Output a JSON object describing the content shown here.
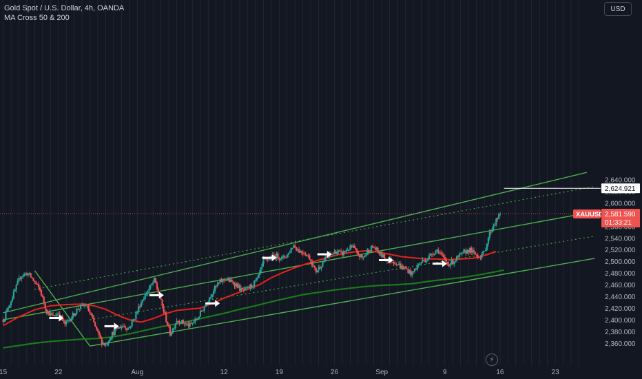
{
  "legend": {
    "title": "Gold Spot / U.S. Dollar, 4h, OANDA",
    "indicator": "MA Cross 50 & 200"
  },
  "currency_button": "USD",
  "price_label": {
    "symbol": "XAUUSD",
    "price": "2,581.590",
    "countdown": "01:33:21"
  },
  "target_label": "2,624.921",
  "colors": {
    "background": "#131722",
    "up": "#26a69a",
    "down": "#ef5350",
    "channel": "#4caf50",
    "ma_fast": "#e5231b",
    "ma_slow": "#1b7a1b",
    "grid": "#2a2e39",
    "price_line": "#ef5350"
  },
  "icons": {
    "lightning": "lightning-icon"
  },
  "chart_data": {
    "type": "candlestick",
    "y_axis": {
      "min": 2350,
      "max": 2650,
      "ticks": [
        2360,
        2380,
        2400,
        2420,
        2440,
        2460,
        2480,
        2500,
        2520,
        2540,
        2560,
        2580,
        2600,
        2620,
        2640
      ],
      "tick_labels": [
        "2,360.000",
        "2,380.000",
        "2,400.000",
        "2,420.000",
        "2,440.000",
        "2,460.000",
        "2,480.000",
        "2,500.000",
        "2,520.000",
        "2,540.000",
        "2,560.000",
        "2,580.000",
        "2,600.000",
        "2,620.000",
        "2,640.000"
      ]
    },
    "x_axis": {
      "range_day": [
        15.0,
        38.9
      ],
      "labels": [
        {
          "day": 15,
          "text": "15"
        },
        {
          "day": 22,
          "text": "22"
        },
        {
          "day": 32,
          "text": "Aug"
        },
        {
          "day": 43,
          "text": "12"
        },
        {
          "day": 50,
          "text": "19"
        },
        {
          "day": 57,
          "text": "26"
        },
        {
          "day": 63,
          "text": "Sep"
        },
        {
          "day": 71,
          "text": "9"
        },
        {
          "day": 78,
          "text": "16"
        },
        {
          "day": 85,
          "text": "23"
        }
      ]
    },
    "close_path": [
      [
        15.0,
        2400
      ],
      [
        16.5,
        2450
      ],
      [
        17.2,
        2475
      ],
      [
        18.1,
        2480
      ],
      [
        18.8,
        2468
      ],
      [
        19.7,
        2450
      ],
      [
        20.5,
        2415
      ],
      [
        21.3,
        2405
      ],
      [
        22.0,
        2412
      ],
      [
        22.8,
        2392
      ],
      [
        23.7,
        2405
      ],
      [
        24.5,
        2420
      ],
      [
        25.5,
        2425
      ],
      [
        26.2,
        2405
      ],
      [
        26.9,
        2380
      ],
      [
        27.5,
        2362
      ],
      [
        28.0,
        2357
      ],
      [
        28.6,
        2372
      ],
      [
        29.4,
        2385
      ],
      [
        30.2,
        2390
      ],
      [
        30.9,
        2385
      ],
      [
        31.7,
        2405
      ],
      [
        32.3,
        2425
      ],
      [
        32.9,
        2440
      ],
      [
        33.6,
        2455
      ],
      [
        34.2,
        2468
      ],
      [
        34.8,
        2440
      ],
      [
        35.5,
        2408
      ],
      [
        36.2,
        2375
      ],
      [
        37.0,
        2400
      ],
      [
        37.8,
        2395
      ],
      [
        38.6,
        2390
      ],
      [
        39.5,
        2400
      ],
      [
        40.4,
        2420
      ],
      [
        41.2,
        2440
      ],
      [
        41.9,
        2455
      ],
      [
        42.5,
        2465
      ],
      [
        43.2,
        2470
      ],
      [
        43.9,
        2465
      ],
      [
        44.6,
        2460
      ],
      [
        45.2,
        2450
      ],
      [
        45.9,
        2452
      ],
      [
        46.6,
        2460
      ],
      [
        47.3,
        2470
      ],
      [
        48.0,
        2500
      ],
      [
        48.8,
        2505
      ],
      [
        49.6,
        2510
      ],
      [
        50.4,
        2505
      ],
      [
        51.1,
        2512
      ],
      [
        51.8,
        2528
      ],
      [
        52.5,
        2518
      ],
      [
        53.2,
        2515
      ],
      [
        53.9,
        2505
      ],
      [
        54.6,
        2482
      ],
      [
        55.2,
        2492
      ],
      [
        55.9,
        2505
      ],
      [
        56.6,
        2512
      ],
      [
        57.3,
        2518
      ],
      [
        57.9,
        2512
      ],
      [
        58.6,
        2520
      ],
      [
        59.3,
        2525
      ],
      [
        59.9,
        2512
      ],
      [
        60.6,
        2505
      ],
      [
        61.2,
        2518
      ],
      [
        61.9,
        2525
      ],
      [
        62.6,
        2515
      ],
      [
        63.4,
        2505
      ],
      [
        64.1,
        2502
      ],
      [
        64.8,
        2498
      ],
      [
        65.5,
        2490
      ],
      [
        66.2,
        2486
      ],
      [
        66.8,
        2478
      ],
      [
        67.4,
        2490
      ],
      [
        68.1,
        2500
      ],
      [
        68.8,
        2505
      ],
      [
        69.5,
        2515
      ],
      [
        70.1,
        2520
      ],
      [
        70.8,
        2505
      ],
      [
        71.4,
        2495
      ],
      [
        72.1,
        2500
      ],
      [
        72.8,
        2508
      ],
      [
        73.5,
        2515
      ],
      [
        74.1,
        2520
      ],
      [
        74.8,
        2512
      ],
      [
        75.4,
        2508
      ],
      [
        76.0,
        2515
      ],
      [
        76.6,
        2545
      ],
      [
        77.1,
        2560
      ],
      [
        77.6,
        2572
      ],
      [
        78.1,
        2581.59
      ]
    ],
    "ma_fast": [
      [
        15.0,
        2390
      ],
      [
        17.0,
        2405
      ],
      [
        19.0,
        2417
      ],
      [
        21.0,
        2424
      ],
      [
        23.0,
        2426
      ],
      [
        25.0,
        2427
      ],
      [
        26.5,
        2424
      ],
      [
        28.0,
        2418
      ],
      [
        29.5,
        2408
      ],
      [
        31.0,
        2400
      ],
      [
        32.5,
        2396
      ],
      [
        34.0,
        2402
      ],
      [
        35.5,
        2410
      ],
      [
        37.0,
        2416
      ],
      [
        38.5,
        2418
      ],
      [
        40.0,
        2420
      ],
      [
        41.5,
        2428
      ],
      [
        43.0,
        2437
      ],
      [
        44.5,
        2445
      ],
      [
        46.0,
        2452
      ],
      [
        47.5,
        2460
      ],
      [
        49.0,
        2472
      ],
      [
        50.5,
        2481
      ],
      [
        52.0,
        2489
      ],
      [
        53.5,
        2496
      ],
      [
        55.0,
        2502
      ],
      [
        56.5,
        2508
      ],
      [
        58.0,
        2513
      ],
      [
        59.5,
        2516
      ],
      [
        61.0,
        2518
      ],
      [
        62.5,
        2516
      ],
      [
        64.0,
        2512
      ],
      [
        65.5,
        2508
      ],
      [
        67.0,
        2506
      ],
      [
        68.5,
        2504
      ],
      [
        70.0,
        2504
      ],
      [
        71.5,
        2503
      ],
      [
        73.0,
        2504
      ],
      [
        74.5,
        2505
      ],
      [
        75.5,
        2508
      ],
      [
        76.5,
        2512
      ],
      [
        77.5,
        2517
      ]
    ],
    "ma_slow": [
      [
        15.0,
        2352
      ],
      [
        17.0,
        2356
      ],
      [
        19.0,
        2360
      ],
      [
        21.0,
        2363
      ],
      [
        23.0,
        2365
      ],
      [
        25.0,
        2367
      ],
      [
        27.0,
        2368
      ],
      [
        29.0,
        2371
      ],
      [
        31.0,
        2376
      ],
      [
        33.0,
        2382
      ],
      [
        35.0,
        2388
      ],
      [
        37.0,
        2393
      ],
      [
        39.0,
        2399
      ],
      [
        41.0,
        2405
      ],
      [
        43.0,
        2411
      ],
      [
        45.0,
        2418
      ],
      [
        47.0,
        2424
      ],
      [
        49.0,
        2431
      ],
      [
        51.0,
        2437
      ],
      [
        53.0,
        2443
      ],
      [
        55.0,
        2447
      ],
      [
        57.0,
        2451
      ],
      [
        59.0,
        2454
      ],
      [
        61.0,
        2457
      ],
      [
        63.0,
        2459
      ],
      [
        65.0,
        2460
      ],
      [
        67.0,
        2462
      ],
      [
        69.0,
        2466
      ],
      [
        71.0,
        2469
      ],
      [
        73.0,
        2472
      ],
      [
        75.0,
        2476
      ],
      [
        77.0,
        2481
      ],
      [
        78.5,
        2485
      ]
    ],
    "channel_lines": [
      {
        "name": "upper",
        "style": "solid",
        "from": [
          15.0,
          2412
        ],
        "to": [
          89.0,
          2652
        ]
      },
      {
        "name": "upper-mid",
        "style": "dotted",
        "from": [
          19.0,
          2452
        ],
        "to": [
          90.0,
          2628
        ]
      },
      {
        "name": "middle",
        "style": "solid",
        "from": [
          15.0,
          2400
        ],
        "to": [
          90.0,
          2585
        ]
      },
      {
        "name": "lower-mid",
        "style": "dotted",
        "from": [
          26.0,
          2400
        ],
        "to": [
          90.0,
          2543
        ]
      },
      {
        "name": "lower",
        "style": "solid",
        "from": [
          26.0,
          2355
        ],
        "to": [
          90.0,
          2505
        ]
      }
    ],
    "diagonal_line": {
      "from": [
        19.0,
        2484
      ],
      "to": [
        26.0,
        2355
      ]
    },
    "target_line": {
      "from_day": 78.5,
      "price": 2624.921
    },
    "current_price": 2581.59,
    "signal_arrows": [
      {
        "day": 21.8,
        "price": 2403
      },
      {
        "day": 28.8,
        "price": 2389
      },
      {
        "day": 34.5,
        "price": 2442
      },
      {
        "day": 41.6,
        "price": 2428
      },
      {
        "day": 48.8,
        "price": 2506
      },
      {
        "day": 55.8,
        "price": 2512
      },
      {
        "day": 63.6,
        "price": 2502
      },
      {
        "day": 70.4,
        "price": 2496
      }
    ]
  }
}
